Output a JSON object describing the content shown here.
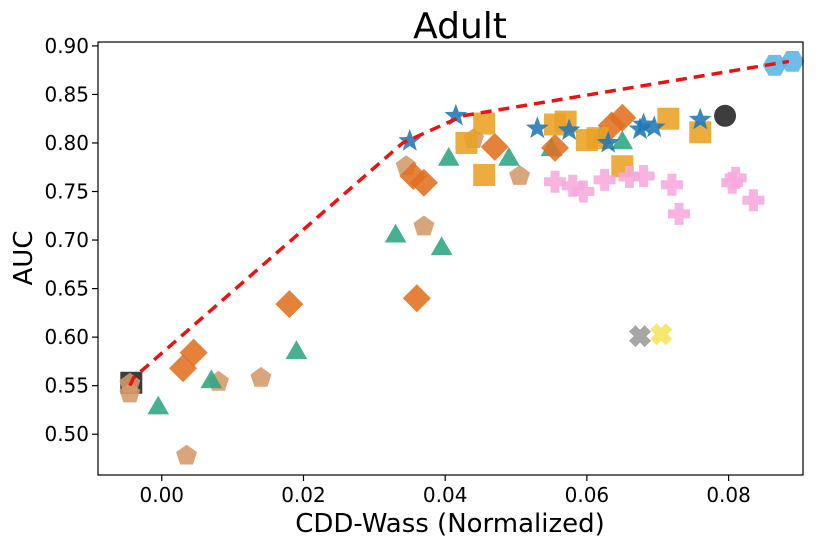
{
  "chart_data": {
    "type": "scatter",
    "title": "Adult",
    "xlabel": "CDD-Wass (Normalized)",
    "ylabel": "AUC",
    "xlim": [
      -0.009,
      0.0905
    ],
    "ylim": [
      0.458,
      0.904
    ],
    "xticks": [
      0.0,
      0.02,
      0.04,
      0.06,
      0.08
    ],
    "xtick_labels": [
      "0.00",
      "0.02",
      "0.04",
      "0.06",
      "0.08"
    ],
    "yticks": [
      0.5,
      0.55,
      0.6,
      0.65,
      0.7,
      0.75,
      0.8,
      0.85,
      0.9
    ],
    "ytick_labels": [
      "0.50",
      "0.55",
      "0.60",
      "0.65",
      "0.70",
      "0.75",
      "0.80",
      "0.85",
      "0.90"
    ],
    "grid": false,
    "frontier": {
      "style": "dashed",
      "color": "#ee1111",
      "x": [
        -0.0045,
        -0.004,
        0.034,
        0.0425,
        0.0885
      ],
      "y": [
        0.55,
        0.558,
        0.8,
        0.828,
        0.884
      ]
    },
    "series": [
      {
        "name": "square-black",
        "marker": "square",
        "color": "#222222",
        "x": [
          -0.0043
        ],
        "y": [
          0.553
        ]
      },
      {
        "name": "pentagon-tan",
        "marker": "pentagon",
        "color": "#d49a6a",
        "x": [
          -0.0045,
          -0.0045,
          0.008,
          0.0035,
          0.014,
          0.0345,
          0.037,
          0.044,
          0.0505
        ],
        "y": [
          0.552,
          0.542,
          0.554,
          0.478,
          0.558,
          0.776,
          0.714,
          0.804,
          0.766
        ]
      },
      {
        "name": "triangle-green",
        "marker": "triangle",
        "color": "#2ca683",
        "x": [
          -0.0005,
          0.007,
          0.019,
          0.033,
          0.0395,
          0.0405,
          0.049,
          0.055,
          0.062,
          0.065
        ],
        "y": [
          0.529,
          0.556,
          0.586,
          0.706,
          0.693,
          0.785,
          0.785,
          0.795,
          0.808,
          0.802
        ]
      },
      {
        "name": "diamond-orange",
        "marker": "diamond",
        "color": "#e07020",
        "x": [
          0.003,
          0.0045,
          0.018,
          0.0355,
          0.037,
          0.036,
          0.047,
          0.0555,
          0.0635,
          0.065
        ],
        "y": [
          0.568,
          0.584,
          0.634,
          0.766,
          0.759,
          0.64,
          0.796,
          0.795,
          0.818,
          0.826
        ]
      },
      {
        "name": "square-gold",
        "marker": "square",
        "color": "#ebA023",
        "x": [
          0.043,
          0.0455,
          0.0455,
          0.0555,
          0.057,
          0.06,
          0.0615,
          0.065,
          0.0715,
          0.076
        ],
        "y": [
          0.8,
          0.82,
          0.767,
          0.819,
          0.822,
          0.803,
          0.805,
          0.776,
          0.825,
          0.811
        ]
      },
      {
        "name": "star-blue",
        "marker": "star",
        "color": "#1f77b4",
        "x": [
          0.035,
          0.0415,
          0.053,
          0.0575,
          0.063,
          0.0675,
          0.068,
          0.0695,
          0.076
        ],
        "y": [
          0.802,
          0.828,
          0.815,
          0.813,
          0.8,
          0.814,
          0.819,
          0.816,
          0.824
        ]
      },
      {
        "name": "plus-pink",
        "marker": "plus",
        "color": "#f7a8dc",
        "x": [
          0.0555,
          0.058,
          0.0595,
          0.0625,
          0.066,
          0.068,
          0.072,
          0.073,
          0.0805,
          0.081,
          0.0835
        ],
        "y": [
          0.76,
          0.756,
          0.75,
          0.762,
          0.765,
          0.766,
          0.757,
          0.727,
          0.759,
          0.764,
          0.741
        ]
      },
      {
        "name": "x-gray",
        "marker": "x",
        "color": "#9a9a9a",
        "x": [
          0.0675
        ],
        "y": [
          0.601
        ]
      },
      {
        "name": "x-yellow",
        "marker": "x",
        "color": "#f2e55a",
        "x": [
          0.0705
        ],
        "y": [
          0.603
        ]
      },
      {
        "name": "circle-black",
        "marker": "circle",
        "color": "#222222",
        "x": [
          0.0795
        ],
        "y": [
          0.828
        ]
      },
      {
        "name": "hexagon-lightblue",
        "marker": "hexagon",
        "color": "#5ab4e5",
        "x": [
          0.0865,
          0.089
        ],
        "y": [
          0.88,
          0.884
        ]
      }
    ]
  }
}
